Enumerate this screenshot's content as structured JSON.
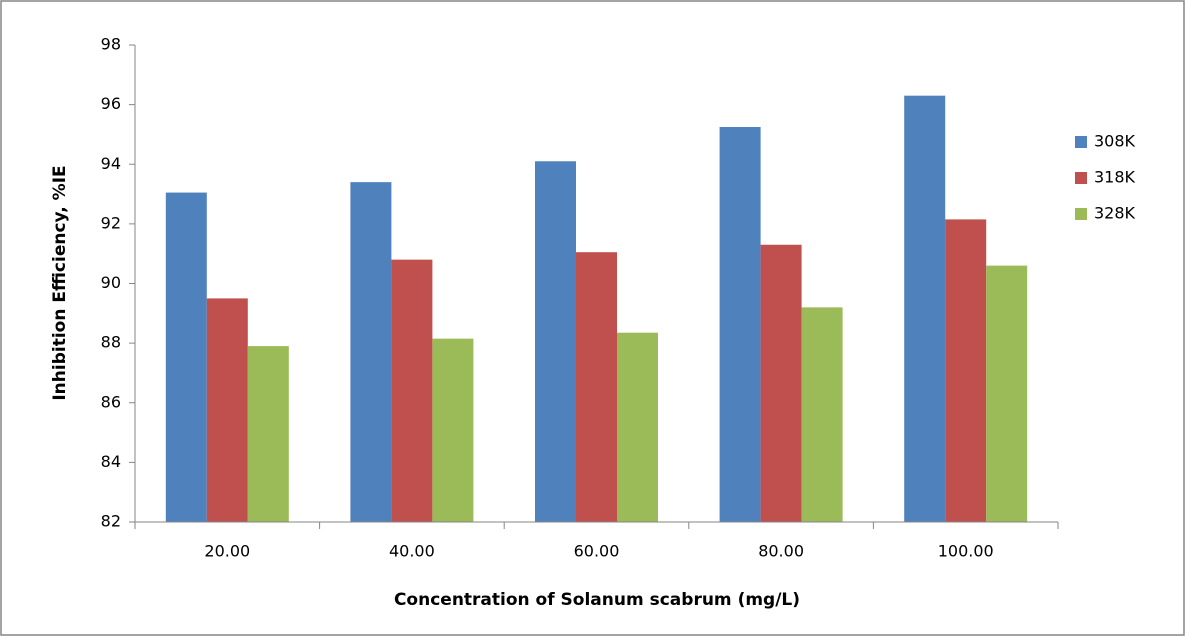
{
  "chart_data": {
    "type": "bar",
    "y_label": "Inhibition Efficiency, %IE",
    "x_label": "Concentration of  Solanum scabrum (mg/L)",
    "categories": [
      "20.00",
      "40.00",
      "60.00",
      "80.00",
      "100.00"
    ],
    "series": [
      {
        "name": "308K",
        "color": "#4f81bd",
        "values": [
          93.05,
          93.4,
          94.1,
          95.25,
          96.3
        ]
      },
      {
        "name": "318K",
        "color": "#c0504d",
        "values": [
          89.5,
          90.8,
          91.05,
          91.3,
          92.15
        ]
      },
      {
        "name": "328K",
        "color": "#9bbb59",
        "values": [
          87.9,
          88.15,
          88.35,
          89.2,
          90.6
        ]
      }
    ],
    "ylim": [
      82,
      98
    ],
    "yticks": [
      82,
      84,
      86,
      88,
      90,
      92,
      94,
      96,
      98
    ],
    "grid": false,
    "legend": "right"
  }
}
